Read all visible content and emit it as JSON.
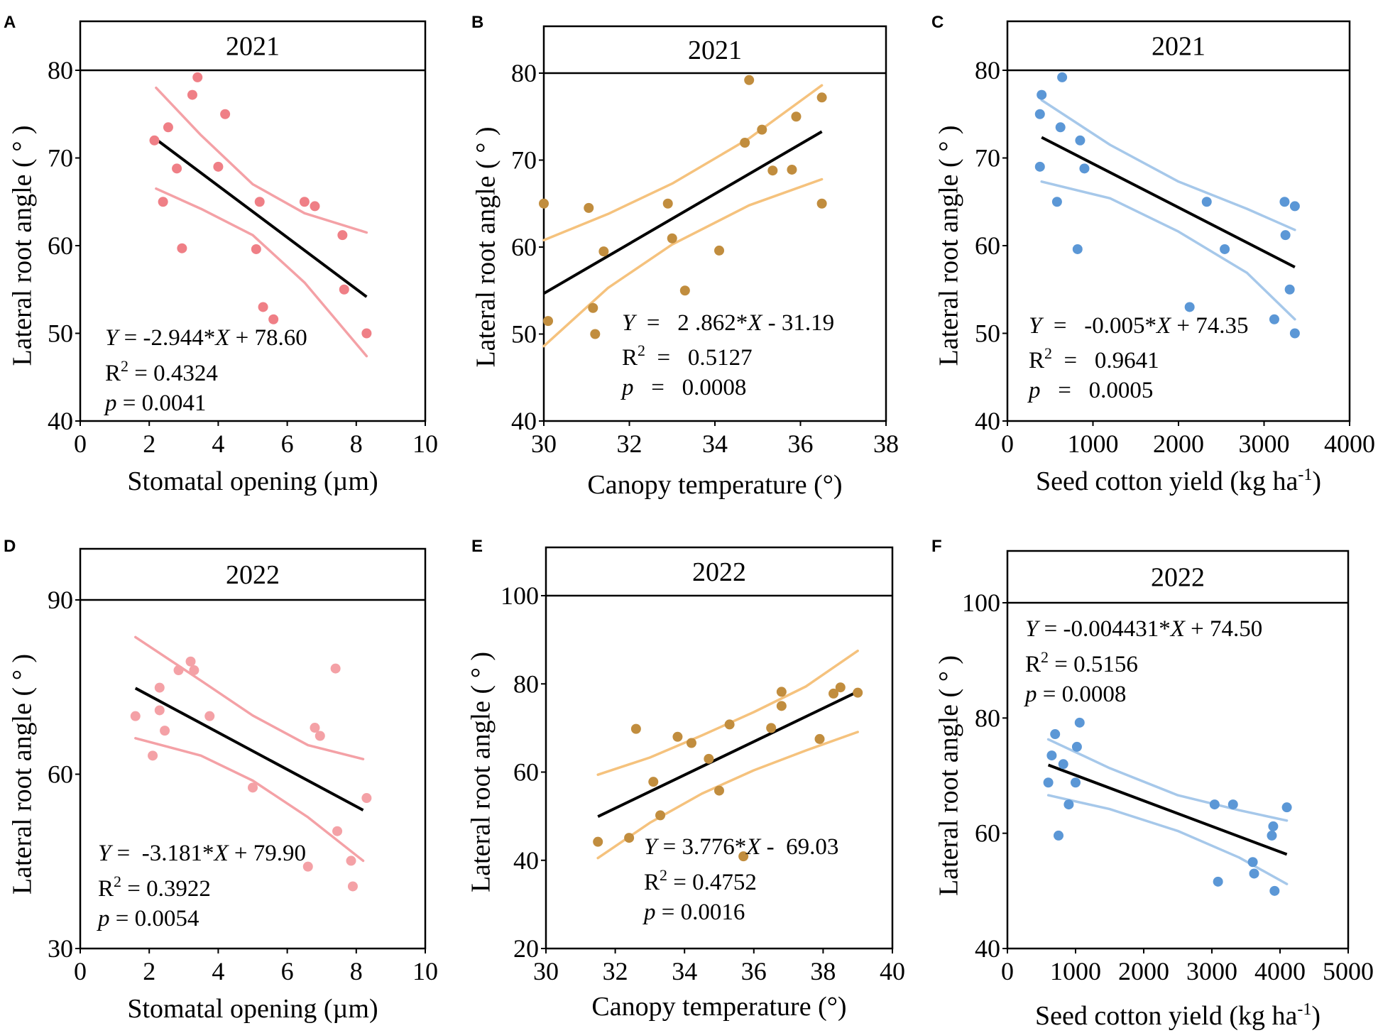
{
  "figure": {
    "panels": [
      {
        "letter": "A",
        "strip": "2021",
        "stats": {
          "eq_y": "Y",
          "eq_rest": " = -2.944*",
          "eq_x": "X",
          "eq_tail": " + 78.60",
          "r2_pre": "R",
          "r2_sup": "2",
          "r2_val": " = 0.4324",
          "p_label": "p",
          "p_val": " = 0.0041"
        }
      },
      {
        "letter": "B",
        "strip": "2021",
        "stats": {
          "eq_y": "Y",
          "eq_rest": "  =   2 .862*",
          "eq_x": "X",
          "eq_tail": " - 31.19",
          "r2_pre": "R",
          "r2_sup": "2",
          "r2_val": "  =   0.5127",
          "p_label": "p",
          "p_val": "   =   0.0008"
        }
      },
      {
        "letter": "C",
        "strip": "2021",
        "stats": {
          "eq_y": "Y",
          "eq_rest": "  =   -0.005*",
          "eq_x": "X",
          "eq_tail": " + 74.35",
          "r2_pre": "R",
          "r2_sup": "2",
          "r2_val": "  =   0.9641",
          "p_label": "p",
          "p_val": "   =   0.0005"
        }
      },
      {
        "letter": "D",
        "strip": "2022",
        "stats": {
          "eq_y": "Y",
          "eq_rest": " =  -3.181*",
          "eq_x": "X",
          "eq_tail": " + 79.90",
          "r2_pre": "R",
          "r2_sup": "2",
          "r2_val": " = 0.3922",
          "p_label": "p",
          "p_val": " = 0.0054"
        }
      },
      {
        "letter": "E",
        "strip": "2022",
        "stats": {
          "eq_y": "Y",
          "eq_rest": " = 3.776*",
          "eq_x": "X",
          "eq_tail": " -  69.03",
          "r2_pre": "R",
          "r2_sup": "2",
          "r2_val": " = 0.4752",
          "p_label": "p",
          "p_val": " = 0.0016"
        }
      },
      {
        "letter": "F",
        "strip": "2022",
        "stats": {
          "eq_y": "Y",
          "eq_rest": " = -0.004431*",
          "eq_x": "X",
          "eq_tail": " + 74.50",
          "r2_pre": "R",
          "r2_sup": "2",
          "r2_val": " = 0.5156",
          "p_label": "p",
          "p_val": " = 0.0008"
        }
      }
    ]
  },
  "chart_data": [
    {
      "panel": "A",
      "type": "scatter",
      "title": "2021",
      "xlabel": "Stomatal opening (µm)",
      "ylabel": "Lateral root angle ( ° )",
      "xlim": [
        0,
        10
      ],
      "ylim": [
        40,
        80
      ],
      "xticks": [
        0,
        2,
        4,
        6,
        8,
        10
      ],
      "yticks": [
        40,
        50,
        60,
        70,
        80
      ],
      "color": "#ef7f86",
      "band_color": "#f4a1a6",
      "points": [
        [
          2.15,
          72
        ],
        [
          2.4,
          65
        ],
        [
          2.55,
          73.5
        ],
        [
          2.8,
          68.8
        ],
        [
          2.95,
          59.7
        ],
        [
          3.25,
          77.2
        ],
        [
          3.4,
          79.2
        ],
        [
          4.0,
          69
        ],
        [
          4.2,
          75
        ],
        [
          5.1,
          59.6
        ],
        [
          5.2,
          65
        ],
        [
          5.3,
          53
        ],
        [
          5.6,
          51.6
        ],
        [
          6.5,
          65
        ],
        [
          6.8,
          64.5
        ],
        [
          7.6,
          61.2
        ],
        [
          7.65,
          55
        ],
        [
          8.3,
          50
        ]
      ],
      "regression": {
        "slope": -2.944,
        "intercept": 78.6,
        "x_from": 2.2,
        "x_to": 8.3
      },
      "band_upper": [
        [
          2.2,
          78
        ],
        [
          3.5,
          72.6
        ],
        [
          5.0,
          67
        ],
        [
          6.5,
          63.7
        ],
        [
          8.3,
          61.5
        ]
      ],
      "band_lower": [
        [
          2.2,
          66.5
        ],
        [
          3.5,
          64.2
        ],
        [
          5.0,
          61.2
        ],
        [
          6.5,
          55.8
        ],
        [
          8.3,
          47.4
        ]
      ]
    },
    {
      "panel": "B",
      "type": "scatter",
      "title": "2021",
      "xlabel": "Canopy temperature (°)",
      "ylabel": "Lateral root angle ( ° )",
      "xlim": [
        30,
        38
      ],
      "ylim": [
        40,
        80
      ],
      "xticks": [
        30,
        32,
        34,
        36,
        38
      ],
      "yticks": [
        40,
        50,
        60,
        70,
        80
      ],
      "color": "#c18d3e",
      "band_color": "#f5c27d",
      "points": [
        [
          30.0,
          65
        ],
        [
          30.1,
          51.5
        ],
        [
          31.05,
          64.5
        ],
        [
          31.15,
          53
        ],
        [
          31.2,
          50
        ],
        [
          31.4,
          59.5
        ],
        [
          32.9,
          65
        ],
        [
          33.0,
          61
        ],
        [
          33.3,
          55
        ],
        [
          34.1,
          59.6
        ],
        [
          34.7,
          72
        ],
        [
          34.8,
          79.2
        ],
        [
          35.1,
          73.5
        ],
        [
          35.35,
          68.8
        ],
        [
          35.8,
          68.9
        ],
        [
          35.9,
          75
        ],
        [
          36.5,
          77.2
        ],
        [
          36.5,
          65
        ]
      ],
      "regression": {
        "slope": 2.862,
        "intercept": -31.19,
        "x_from": 30.0,
        "x_to": 36.5
      },
      "band_upper": [
        [
          30.0,
          60.8
        ],
        [
          31.5,
          63.8
        ],
        [
          33.0,
          67.3
        ],
        [
          34.8,
          72.5
        ],
        [
          36.5,
          78.6
        ]
      ],
      "band_lower": [
        [
          30.0,
          48.6
        ],
        [
          31.5,
          55.3
        ],
        [
          33.0,
          60.3
        ],
        [
          34.8,
          64.8
        ],
        [
          36.5,
          67.8
        ]
      ]
    },
    {
      "panel": "C",
      "type": "scatter",
      "title": "2021",
      "xlabel": "Seed cotton yield (kg ha⁻¹)",
      "ylabel": "Lateral root angle ( ° )",
      "xlim": [
        0,
        4000
      ],
      "ylim": [
        40,
        80
      ],
      "xticks": [
        0,
        1000,
        2000,
        3000,
        4000
      ],
      "yticks": [
        40,
        50,
        60,
        70,
        80
      ],
      "color": "#5b97d6",
      "band_color": "#a6c8ea",
      "points": [
        [
          380,
          69
        ],
        [
          380,
          75
        ],
        [
          400,
          77.2
        ],
        [
          580,
          65
        ],
        [
          620,
          73.5
        ],
        [
          640,
          79.2
        ],
        [
          820,
          59.6
        ],
        [
          850,
          72
        ],
        [
          900,
          68.8
        ],
        [
          2130,
          53
        ],
        [
          2330,
          65
        ],
        [
          2540,
          59.6
        ],
        [
          3120,
          51.6
        ],
        [
          3240,
          65
        ],
        [
          3250,
          61.2
        ],
        [
          3300,
          55
        ],
        [
          3360,
          64.5
        ],
        [
          3360,
          50
        ]
      ],
      "regression": {
        "slope": -0.005,
        "intercept": 74.35,
        "x_from": 400,
        "x_to": 3360
      },
      "band_upper": [
        [
          400,
          76.6
        ],
        [
          1200,
          71.5
        ],
        [
          2000,
          67.3
        ],
        [
          2800,
          64.2
        ],
        [
          3360,
          61.8
        ]
      ],
      "band_lower": [
        [
          400,
          67.3
        ],
        [
          1200,
          65.4
        ],
        [
          2000,
          61.6
        ],
        [
          2800,
          56.9
        ],
        [
          3360,
          51.6
        ]
      ]
    },
    {
      "panel": "D",
      "type": "scatter",
      "title": "2022",
      "xlabel": "Stomatal opening (µm)",
      "ylabel": "Lateral root angle ( ° )",
      "xlim": [
        0,
        10
      ],
      "ylim": [
        30,
        90
      ],
      "xticks": [
        0,
        2,
        4,
        6,
        8,
        10
      ],
      "yticks": [
        30,
        60,
        90
      ],
      "color": "#f4a1a6",
      "band_color": "#f4a1a6",
      "points": [
        [
          1.6,
          70
        ],
        [
          2.1,
          63.2
        ],
        [
          2.3,
          74.9
        ],
        [
          2.3,
          71
        ],
        [
          2.45,
          67.5
        ],
        [
          2.85,
          77.9
        ],
        [
          3.2,
          79.4
        ],
        [
          3.3,
          77.9
        ],
        [
          3.75,
          70
        ],
        [
          5.0,
          57.7
        ],
        [
          6.6,
          44.1
        ],
        [
          6.8,
          68
        ],
        [
          6.95,
          66.6
        ],
        [
          7.4,
          78.2
        ],
        [
          7.45,
          50.2
        ],
        [
          7.85,
          45.1
        ],
        [
          7.9,
          40.7
        ],
        [
          8.3,
          55.9
        ]
      ],
      "regression": {
        "slope": -3.181,
        "intercept": 79.9,
        "x_from": 1.6,
        "x_to": 8.2
      },
      "band_upper": [
        [
          1.6,
          83.6
        ],
        [
          3.5,
          76.1
        ],
        [
          5.0,
          70.1
        ],
        [
          6.6,
          65.0
        ],
        [
          8.2,
          62.6
        ]
      ],
      "band_lower": [
        [
          1.6,
          66.2
        ],
        [
          3.5,
          63.2
        ],
        [
          5.0,
          58.9
        ],
        [
          6.6,
          52.6
        ],
        [
          8.2,
          45.1
        ]
      ]
    },
    {
      "panel": "E",
      "type": "scatter",
      "title": "2022",
      "xlabel": "Canopy temperature (°)",
      "ylabel": "Lateral root angle ( ° )",
      "xlim": [
        30,
        40
      ],
      "ylim": [
        20,
        100
      ],
      "xticks": [
        30,
        32,
        34,
        36,
        38,
        40
      ],
      "yticks": [
        20,
        40,
        60,
        80,
        100
      ],
      "color": "#c18d3e",
      "band_color": "#f5c27d",
      "points": [
        [
          31.5,
          44.2
        ],
        [
          32.4,
          45.1
        ],
        [
          32.6,
          69.8
        ],
        [
          33.1,
          57.8
        ],
        [
          33.3,
          50.2
        ],
        [
          33.8,
          68
        ],
        [
          34.2,
          66.6
        ],
        [
          34.7,
          63
        ],
        [
          35.0,
          55.8
        ],
        [
          35.3,
          70.8
        ],
        [
          35.7,
          40.9
        ],
        [
          36.5,
          70
        ],
        [
          36.8,
          75
        ],
        [
          36.8,
          78.2
        ],
        [
          37.9,
          67.5
        ],
        [
          38.3,
          77.8
        ],
        [
          38.5,
          79.2
        ],
        [
          39.0,
          78
        ]
      ],
      "regression": {
        "slope": 3.776,
        "intercept": -69.03,
        "x_from": 31.5,
        "x_to": 39.0
      },
      "band_upper": [
        [
          31.5,
          59.4
        ],
        [
          33.0,
          63.3
        ],
        [
          34.5,
          68.3
        ],
        [
          36.0,
          73.6
        ],
        [
          37.5,
          79.4
        ],
        [
          39.0,
          87.5
        ]
      ],
      "band_lower": [
        [
          31.5,
          40.5
        ],
        [
          33.0,
          48.5
        ],
        [
          34.5,
          55.1
        ],
        [
          36.0,
          60.4
        ],
        [
          37.5,
          64.9
        ],
        [
          39.0,
          69.1
        ]
      ]
    },
    {
      "panel": "F",
      "type": "scatter",
      "title": "2022",
      "xlabel": "Seed cotton yield (kg ha⁻¹)",
      "ylabel": "Lateral root angle ( ° )",
      "xlim": [
        0,
        5000
      ],
      "ylim": [
        40,
        100
      ],
      "xticks": [
        0,
        1000,
        2000,
        3000,
        4000,
        5000
      ],
      "yticks": [
        40,
        60,
        80,
        100
      ],
      "color": "#5b97d6",
      "band_color": "#a6c8ea",
      "points": [
        [
          600,
          68.8
        ],
        [
          650,
          73.5
        ],
        [
          700,
          77.2
        ],
        [
          750,
          59.6
        ],
        [
          820,
          72
        ],
        [
          900,
          65
        ],
        [
          1000,
          68.8
        ],
        [
          1020,
          75
        ],
        [
          1060,
          79.2
        ],
        [
          3040,
          65
        ],
        [
          3090,
          51.6
        ],
        [
          3310,
          65
        ],
        [
          3600,
          55
        ],
        [
          3620,
          53
        ],
        [
          3880,
          59.6
        ],
        [
          3900,
          61.2
        ],
        [
          3920,
          50
        ],
        [
          4100,
          64.5
        ]
      ],
      "regression": {
        "slope": -0.004431,
        "intercept": 74.5,
        "x_from": 600,
        "x_to": 4100
      },
      "band_upper": [
        [
          600,
          76.3
        ],
        [
          1500,
          71.3
        ],
        [
          2500,
          66.6
        ],
        [
          3400,
          64.0
        ],
        [
          4100,
          62.2
        ]
      ],
      "band_lower": [
        [
          600,
          66.6
        ],
        [
          1500,
          64.2
        ],
        [
          2500,
          60.4
        ],
        [
          3400,
          55.8
        ],
        [
          4100,
          51.2
        ]
      ]
    }
  ]
}
